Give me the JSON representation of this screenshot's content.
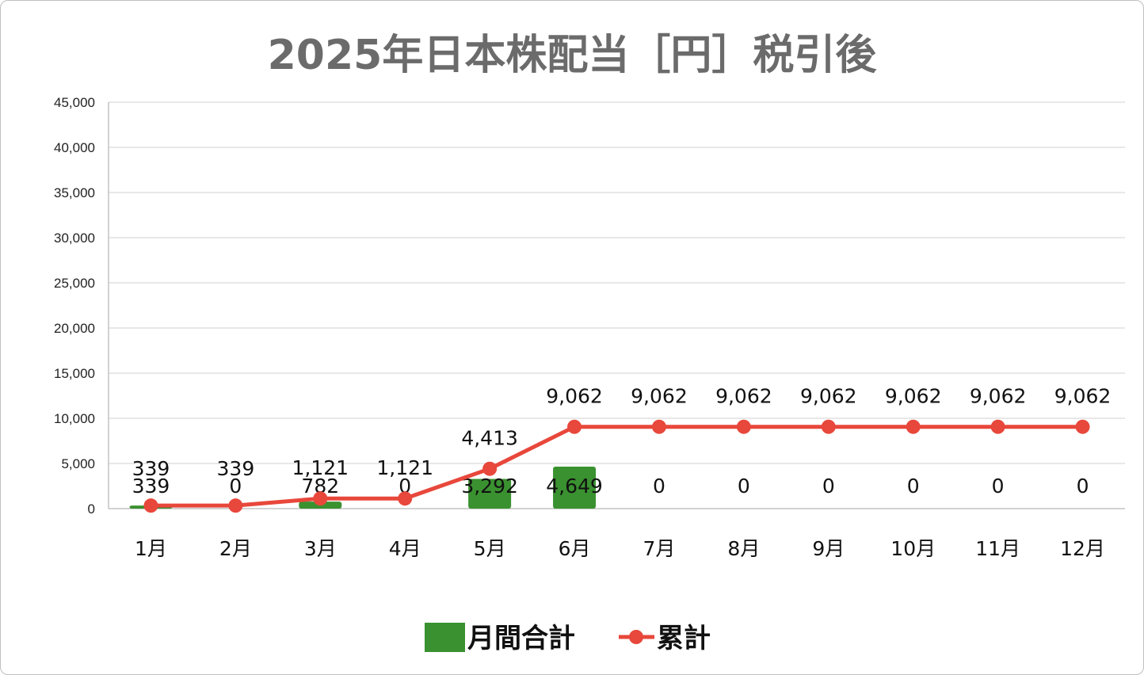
{
  "chart_data": {
    "type": "bar+line",
    "title": "2025年日本株配当［円］税引後",
    "categories": [
      "1月",
      "2月",
      "3月",
      "4月",
      "5月",
      "6月",
      "7月",
      "8月",
      "9月",
      "10月",
      "11月",
      "12月"
    ],
    "series": [
      {
        "name": "月間合計",
        "type": "bar",
        "color": "#3a9130",
        "values": [
          339,
          0,
          782,
          0,
          3292,
          4649,
          0,
          0,
          0,
          0,
          0,
          0
        ],
        "labels": [
          "339",
          "0",
          "782",
          "0",
          "3,292",
          "4,649",
          "0",
          "0",
          "0",
          "0",
          "0",
          "0"
        ]
      },
      {
        "name": "累計",
        "type": "line",
        "color": "#e8473b",
        "values": [
          339,
          339,
          1121,
          1121,
          4413,
          9062,
          9062,
          9062,
          9062,
          9062,
          9062,
          9062
        ],
        "labels": [
          "339",
          "339",
          "1,121",
          "1,121",
          "4,413",
          "9,062",
          "9,062",
          "9,062",
          "9,062",
          "9,062",
          "9,062",
          "9,062"
        ]
      }
    ],
    "ylim": [
      0,
      45000
    ],
    "yticks": [
      0,
      5000,
      10000,
      15000,
      20000,
      25000,
      30000,
      35000,
      40000,
      45000
    ],
    "ytick_labels": [
      "0",
      "5,000",
      "10,000",
      "15,000",
      "20,000",
      "25,000",
      "30,000",
      "35,000",
      "40,000",
      "45,000"
    ],
    "grid": true,
    "legend": "bottom",
    "xlabel": "",
    "ylabel": ""
  }
}
